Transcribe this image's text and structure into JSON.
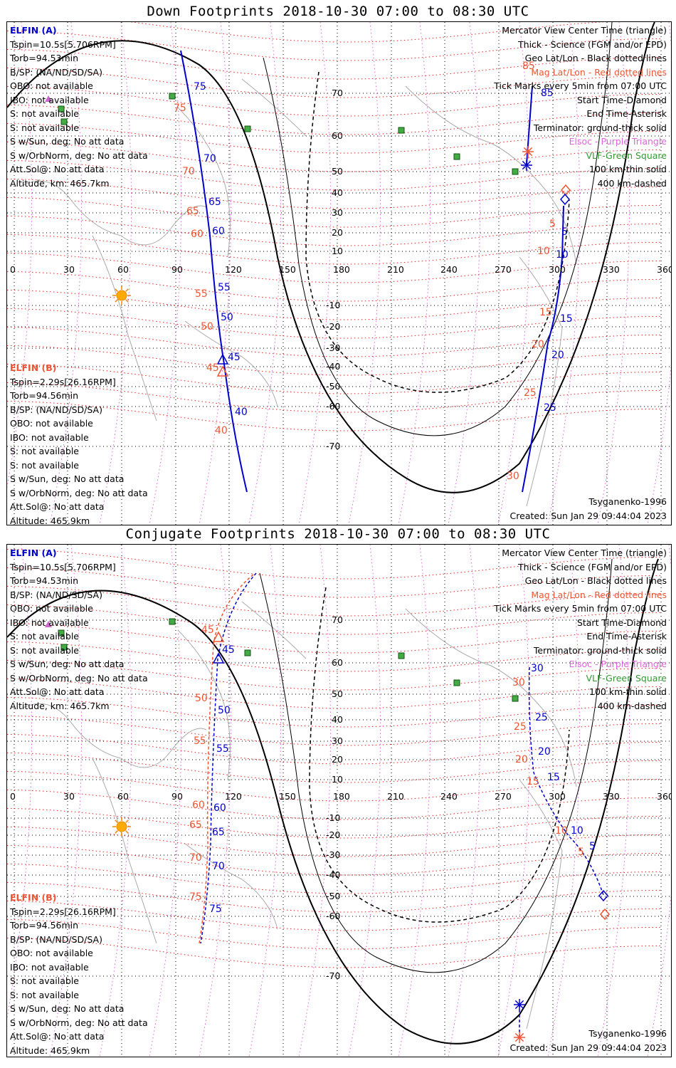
{
  "panels": [
    {
      "title": "Down Footprints 2018-10-30 07:00 to 08:30 UTC",
      "sat_a": {
        "name": "ELFIN (A)",
        "lines": [
          "Tspin=10.5s[5.706RPM]",
          "Torb=94.53min",
          "B/SP: (NA/ND/SD/SA)",
          "OBO: not available",
          "IBO: not available",
          "S: not available",
          "S: not available",
          "S w/Sun, deg: No att data",
          "S w/OrbNorm, deg: No att data",
          "Att.Sol@: No att data",
          "Altitude, km: 465.7km"
        ]
      },
      "sat_b": {
        "name": "ELFIN (B)",
        "lines": [
          "Tspin=2.29s[26.16RPM]",
          "Torb=94.56min",
          "B/SP: (NA/ND/SD/SA)",
          "OBO: not available",
          "IBO: not available",
          "S: not available",
          "S: not available",
          "S w/Sun, deg: No att data",
          "S w/OrbNorm, deg: No att data",
          "Att.Sol@: No att data",
          "Altitude: 465.9km"
        ]
      },
      "legend": [
        "Mercator View Center Time (triangle)",
        "Thick - Science (FGM and/or EPD)",
        "Geo Lat/Lon - Black dotted lines",
        "Mag Lat/Lon - Red dotted lines",
        "Tick Marks every 5min from 07:00 UTC",
        "Start Time-Diamond",
        "End Time-Asterisk",
        "Terminator: ground-thick solid",
        "Elsoc - Purple Triangle",
        "VLF-Green Square",
        "100 km-thin solid",
        "400 km-dashed"
      ],
      "model": "Tsyganenko-1996",
      "created": "Created: Sun Jan 29 09:44:04 2023"
    },
    {
      "title": "Conjugate Footprints 2018-10-30 07:00 to 08:30 UTC",
      "sat_a": {
        "name": "ELFIN (A)",
        "lines": [
          "Tspin=10.5s[5.706RPM]",
          "Torb=94.53min",
          "B/SP: (NA/ND/SD/SA)",
          "OBO: not available",
          "IBO: not available",
          "S: not available",
          "S: not available",
          "S w/Sun, deg: No att data",
          "S w/OrbNorm, deg: No att data",
          "Att.Sol@: No att data",
          "Altitude, km: 465.7km"
        ]
      },
      "sat_b": {
        "name": "ELFIN (B)",
        "lines": [
          "Tspin=2.29s[26.16RPM]",
          "Torb=94.56min",
          "B/SP: (NA/ND/SD/SA)",
          "OBO: not available",
          "IBO: not available",
          "S: not available",
          "S: not available",
          "S w/Sun, deg: No att data",
          "S w/OrbNorm, deg: No att data",
          "Att.Sol@: No att data",
          "Altitude: 465.9km"
        ]
      },
      "legend": [
        "Mercator View Center Time (triangle)",
        "Thick - Science (FGM and/or EPD)",
        "Geo Lat/Lon - Black dotted lines",
        "Mag Lat/Lon - Red dotted lines",
        "Tick Marks every 5min from 07:00 UTC",
        "Start Time-Diamond",
        "End Time-Asterisk",
        "Terminator: ground-thick solid",
        "Elsoc - Purple Triangle",
        "VLF-Green Square",
        "100 km-thin solid",
        "400 km-dashed"
      ],
      "model": "Tsyganenko-1996",
      "created": "Created: Sun Jan 29 09:44:04 2023"
    }
  ],
  "lon_ticks": [
    "0",
    "30",
    "60",
    "90",
    "120",
    "150",
    "180",
    "210",
    "240",
    "270",
    "300",
    "330",
    "360"
  ],
  "lat_ticks": [
    "70",
    "60",
    "50",
    "40",
    "30",
    "20",
    "10",
    "-10",
    "-20",
    "-30",
    "-40",
    "-50",
    "-60",
    "-70"
  ],
  "colors": {
    "sat_a": "#0000cc",
    "sat_b": "#ee5533",
    "elsoc": "#dd66dd",
    "vlf": "#339933",
    "geo_grid": "#000000",
    "mag_grid": "#ee2222",
    "coast": "#aaaaaa"
  },
  "down_a_ticks": [
    "75",
    "70",
    "65",
    "60",
    "55",
    "50",
    "45",
    "40",
    "85",
    "5",
    "10",
    "15",
    "20",
    "25"
  ],
  "down_b_ticks": [
    "75",
    "70",
    "65",
    "60",
    "55",
    "50",
    "45",
    "40",
    "85",
    "5",
    "10",
    "15",
    "20",
    "25",
    "30"
  ],
  "conj_a_ticks": [
    "45",
    "50",
    "55",
    "60",
    "65",
    "70",
    "75",
    "30",
    "25",
    "20",
    "15",
    "10",
    "5"
  ],
  "conj_b_ticks": [
    "45",
    "50",
    "55",
    "60",
    "65",
    "70",
    "75",
    "30",
    "25",
    "20",
    "15",
    "10",
    "5"
  ]
}
